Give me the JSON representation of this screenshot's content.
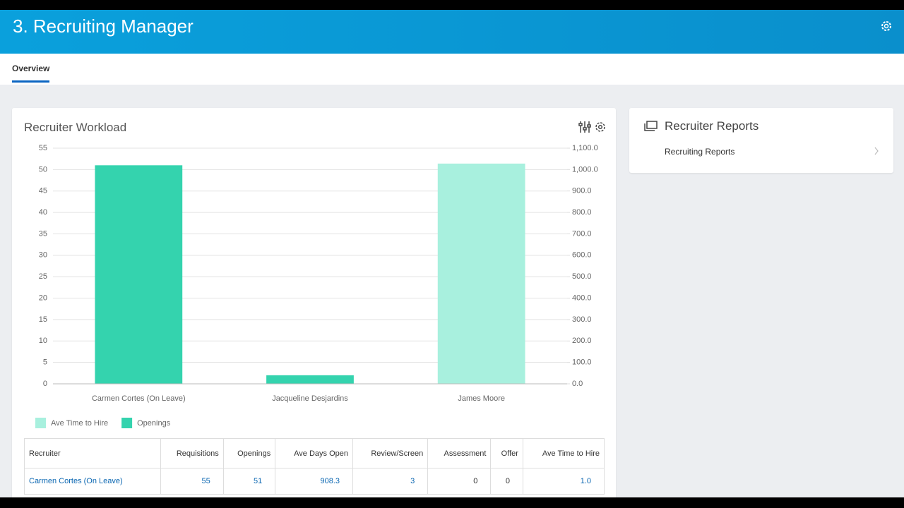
{
  "header": {
    "title": "3. Recruiting Manager"
  },
  "tabs": [
    "Overview"
  ],
  "workload": {
    "title": "Recruiter Workload"
  },
  "chart_data": {
    "type": "bar",
    "categories": [
      "Carmen Cortes (On Leave)",
      "Jacqueline Desjardins",
      "James Moore"
    ],
    "series": [
      {
        "name": "Ave Time to Hire",
        "color": "#a8f0de",
        "axis": "y2",
        "values": [
          1.0,
          null,
          1028
        ]
      },
      {
        "name": "Openings",
        "color": "#34d3ae",
        "values": [
          51,
          2,
          null
        ]
      }
    ],
    "ylim": [
      0,
      55
    ],
    "yticks": [
      0,
      5,
      10,
      15,
      20,
      25,
      30,
      35,
      40,
      45,
      50,
      55
    ],
    "y2lim": [
      0,
      1100
    ],
    "y2ticks": [
      {
        "value": 0,
        "label": "0.0"
      },
      {
        "value": 100,
        "label": "100.0"
      },
      {
        "value": 200,
        "label": "200.0"
      },
      {
        "value": 300,
        "label": "300.0"
      },
      {
        "value": 400,
        "label": "400.0"
      },
      {
        "value": 500,
        "label": "500.0"
      },
      {
        "value": 600,
        "label": "600.0"
      },
      {
        "value": 700,
        "label": "700.0"
      },
      {
        "value": 800,
        "label": "800.0"
      },
      {
        "value": 900,
        "label": "900.0"
      },
      {
        "value": 1000,
        "label": "1,000.0"
      },
      {
        "value": 1100,
        "label": "1,100.0"
      }
    ],
    "grid": true,
    "legend": "bottom-left"
  },
  "table": {
    "columns": [
      "Recruiter",
      "Requisitions",
      "Openings",
      "Ave Days Open",
      "Review/Screen",
      "Assessment",
      "Offer",
      "Ave Time to Hire"
    ],
    "rows": [
      [
        "Carmen Cortes (On Leave)",
        "55",
        "51",
        "908.3",
        "3",
        "0",
        "0",
        "1.0"
      ]
    ]
  },
  "reports": {
    "title": "Recruiter Reports",
    "items": [
      "Recruiting Reports"
    ]
  }
}
